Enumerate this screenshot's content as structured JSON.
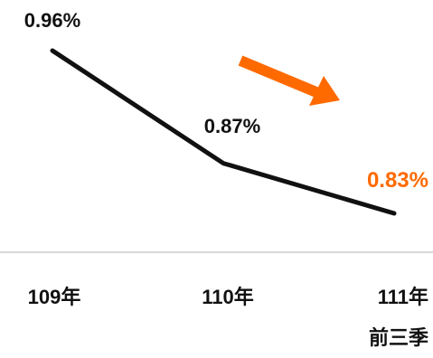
{
  "colors": {
    "line": "#111111",
    "label_default": "#111111",
    "highlight": "#ff6a00",
    "axis": "#cccccc",
    "trend_arrow": "#ff6a00"
  },
  "chart_data": {
    "type": "line",
    "categories": [
      "109年",
      "110年",
      "111年"
    ],
    "category_sublabels": [
      "",
      "",
      "前三季"
    ],
    "values": [
      0.96,
      0.87,
      0.83
    ],
    "data_labels": [
      "0.96%",
      "0.87%",
      "0.83%"
    ],
    "highlight_index": 2,
    "trend_arrow": "down",
    "grid": false,
    "legend": "none",
    "title": "",
    "xlabel": "",
    "ylabel": "",
    "ylim": [
      0.8,
      0.98
    ]
  }
}
